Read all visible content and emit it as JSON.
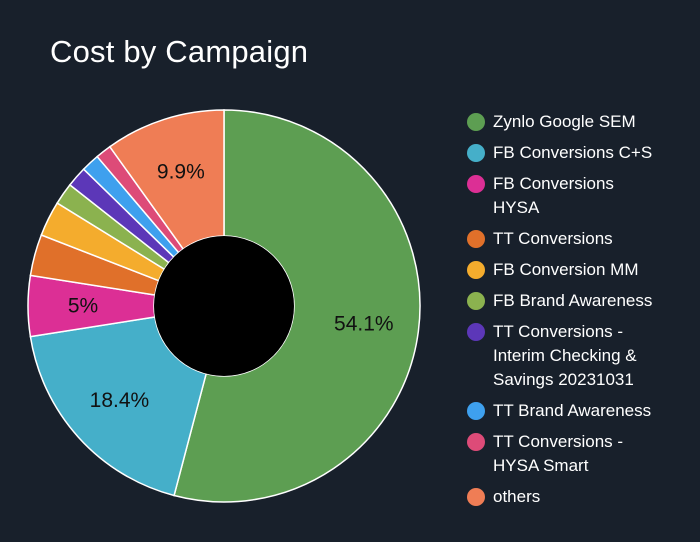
{
  "chart_data": {
    "type": "pie",
    "title": "Cost by Campaign",
    "donut": true,
    "legend_position": "right",
    "slices": [
      {
        "name": "Zynlo Google SEM",
        "value": 54.1,
        "color": "#5d9e52",
        "label": "54.1%"
      },
      {
        "name": "FB Conversions C+S",
        "value": 18.4,
        "color": "#45afc9",
        "label": "18.4%"
      },
      {
        "name": "FB Conversions HYSA",
        "value": 5.0,
        "color": "#dc2f95",
        "label": "5%"
      },
      {
        "name": "TT Conversions",
        "value": 3.4,
        "color": "#e0702a",
        "label": ""
      },
      {
        "name": "FB Conversion MM",
        "value": 2.9,
        "color": "#f4ac2d",
        "label": ""
      },
      {
        "name": "FB Brand Awareness",
        "value": 1.8,
        "color": "#8bb24f",
        "label": ""
      },
      {
        "name": "TT Conversions - Interim Checking & Savings 20231031",
        "value": 1.7,
        "color": "#5c37b8",
        "label": ""
      },
      {
        "name": "TT Brand Awareness",
        "value": 1.5,
        "color": "#3ea0ee",
        "label": ""
      },
      {
        "name": "TT Conversions - HYSA Smart",
        "value": 1.3,
        "color": "#dd4b78",
        "label": ""
      },
      {
        "name": "others",
        "value": 9.9,
        "color": "#ef7d55",
        "label": "9.9%"
      }
    ]
  },
  "legend": [
    {
      "lines": [
        "Zynlo Google SEM"
      ]
    },
    {
      "lines": [
        "FB Conversions C+S"
      ]
    },
    {
      "lines": [
        "FB Conversions",
        "HYSA"
      ]
    },
    {
      "lines": [
        "TT Conversions"
      ]
    },
    {
      "lines": [
        "FB Conversion MM"
      ]
    },
    {
      "lines": [
        "FB Brand Awareness"
      ]
    },
    {
      "lines": [
        "TT Conversions -",
        "Interim Checking &",
        "Savings 20231031"
      ]
    },
    {
      "lines": [
        "TT Brand Awareness"
      ]
    },
    {
      "lines": [
        "TT Conversions -",
        "HYSA Smart"
      ]
    },
    {
      "lines": [
        "others"
      ]
    }
  ]
}
